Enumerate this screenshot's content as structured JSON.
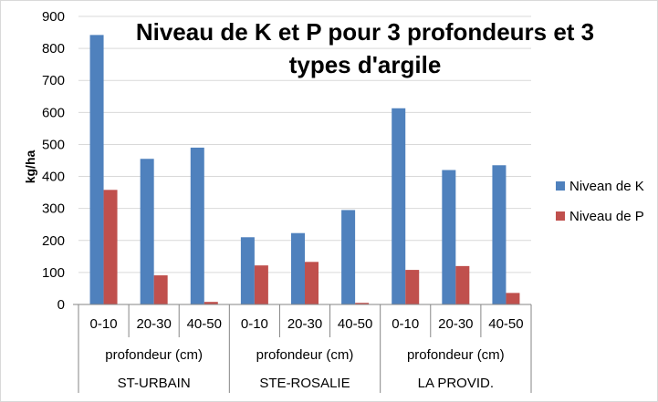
{
  "chart_data": {
    "type": "bar",
    "title_line1": "Niveau de K et P pour 3 profondeurs et 3",
    "title_line2": "types d'argile",
    "ylabel": "kg/ha",
    "ylim": [
      0,
      900
    ],
    "y_ticks": [
      "0",
      "100",
      "200",
      "300",
      "400",
      "500",
      "600",
      "700",
      "800",
      "900"
    ],
    "categories": [
      "0-10",
      "20-30",
      "40-50",
      "0-10",
      "20-30",
      "40-50",
      "0-10",
      "20-30",
      "40-50"
    ],
    "groups": [
      {
        "sublabel": "profondeur (cm)",
        "label": "ST-URBAIN"
      },
      {
        "sublabel": "profondeur (cm)",
        "label": "STE-ROSALIE"
      },
      {
        "sublabel": "profondeur (cm)",
        "label": "LA PROVID."
      }
    ],
    "series": [
      {
        "name": "Nivean de K",
        "color": "#4f81bd",
        "values": [
          842,
          455,
          490,
          210,
          223,
          295,
          613,
          420,
          435
        ]
      },
      {
        "name": "Niveau de P",
        "color": "#c0504d",
        "values": [
          358,
          91,
          8,
          122,
          133,
          5,
          108,
          120,
          36
        ]
      }
    ],
    "grid": true,
    "legend_position": "right"
  }
}
